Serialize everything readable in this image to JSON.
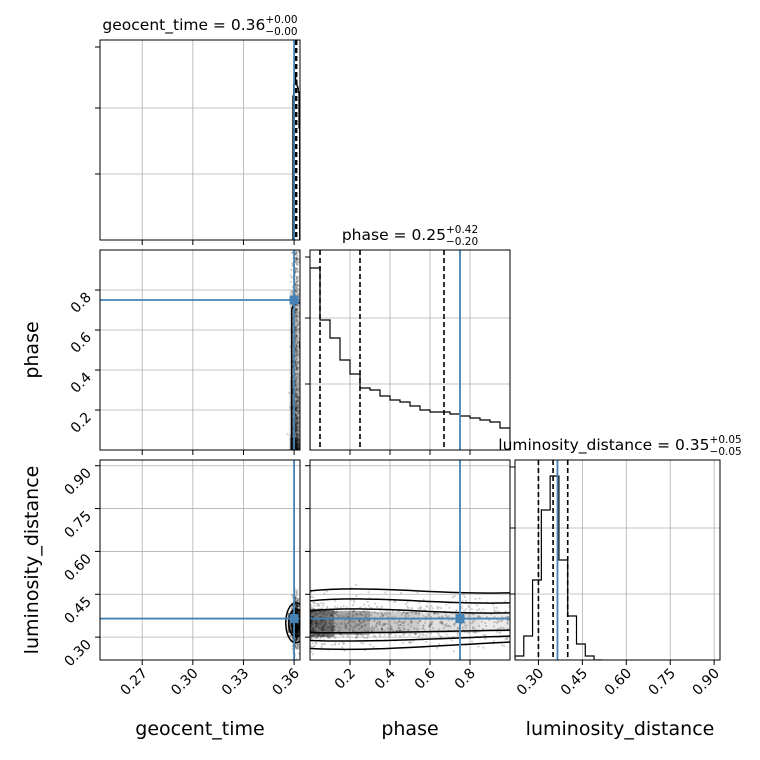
{
  "chart_data": {
    "type": "corner",
    "parameters": [
      "geocent_time",
      "phase",
      "luminosity_distance"
    ],
    "truth": {
      "geocent_time": 0.36,
      "phase": 0.75,
      "luminosity_distance": 0.365
    },
    "truth_color": "#4682b4",
    "grid": true,
    "titles": [
      {
        "param": "geocent_time",
        "prefix": "geocent_time = 0.36",
        "plus": "+0.00",
        "minus": "−0.00"
      },
      {
        "param": "phase",
        "prefix": "phase = 0.25",
        "plus": "+0.42",
        "minus": "−0.20"
      },
      {
        "param": "luminosity_distance",
        "prefix": "luminosity_distance = 0.35",
        "plus": "+0.05",
        "minus": "−0.05"
      }
    ],
    "axes": {
      "geocent_time": {
        "range": [
          0.245,
          0.3635
        ],
        "ticks": [
          0.27,
          0.3,
          0.33,
          0.36
        ],
        "tick_labels": [
          "0.27",
          "0.30",
          "0.33",
          "0.36"
        ],
        "label": "geocent_time"
      },
      "phase": {
        "range": [
          0.0,
          1.0
        ],
        "ticks": [
          0.2,
          0.4,
          0.6,
          0.8
        ],
        "tick_labels": [
          "0.2",
          "0.4",
          "0.6",
          "0.8"
        ],
        "label": "phase"
      },
      "luminosity_distance": {
        "range": [
          0.22,
          0.92
        ],
        "ticks": [
          0.3,
          0.45,
          0.6,
          0.75,
          0.9
        ],
        "tick_labels": [
          "0.30",
          "0.45",
          "0.60",
          "0.75",
          "0.90"
        ],
        "label": "luminosity_distance"
      }
    },
    "quantiles": {
      "geocent_time": [
        0.3605,
        0.361,
        0.3615
      ],
      "phase": [
        0.05,
        0.25,
        0.67
      ],
      "luminosity_distance": [
        0.3,
        0.35,
        0.4
      ]
    },
    "histograms": {
      "geocent_time": {
        "edges": [
          0.3593,
          0.3597,
          0.3601,
          0.3605,
          0.3609,
          0.3613,
          0.3617,
          0.3621,
          0.3625,
          0.3629,
          0.3633
        ],
        "counts": [
          0.72,
          0.78,
          0.82,
          0.82,
          0.8,
          0.79,
          0.77,
          0.76,
          0.74,
          0.56
        ]
      },
      "phase": {
        "edges": [
          0.0,
          0.05,
          0.1,
          0.15,
          0.2,
          0.25,
          0.3,
          0.35,
          0.4,
          0.45,
          0.5,
          0.55,
          0.6,
          0.65,
          0.7,
          0.75,
          0.8,
          0.85,
          0.9,
          0.95,
          1.0
        ],
        "counts": [
          0.91,
          0.65,
          0.56,
          0.45,
          0.38,
          0.31,
          0.3,
          0.27,
          0.25,
          0.24,
          0.22,
          0.2,
          0.19,
          0.19,
          0.18,
          0.17,
          0.16,
          0.15,
          0.14,
          0.11
        ]
      },
      "luminosity_distance": {
        "edges": [
          0.22,
          0.25,
          0.28,
          0.31,
          0.34,
          0.37,
          0.4,
          0.43,
          0.46,
          0.49,
          0.52
        ],
        "counts": [
          0.02,
          0.12,
          0.4,
          0.75,
          0.92,
          0.5,
          0.22,
          0.08,
          0.02,
          0.0
        ]
      }
    },
    "joint": {
      "phase_vs_geocent_time": {
        "center_x": 0.361,
        "spread_x": 0.0012
      },
      "luminosity_distance_vs_geocent_time": {
        "center_x": 0.361,
        "center_y": 0.35,
        "spread_x": 0.0012,
        "spread_y": 0.04
      },
      "luminosity_distance_vs_phase": {
        "center_y": 0.35,
        "spread_y": 0.04
      }
    }
  }
}
